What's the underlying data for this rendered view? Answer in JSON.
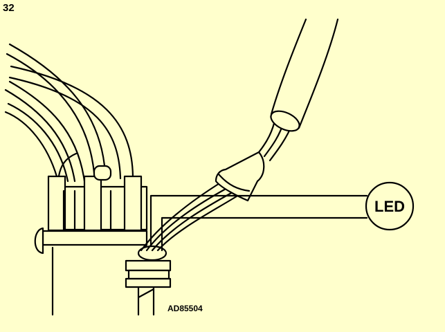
{
  "figure_number": "32",
  "led_label": "LED",
  "reference_code": "AD85504",
  "colors": {
    "background": "#ffffcc",
    "line": "#000000"
  }
}
